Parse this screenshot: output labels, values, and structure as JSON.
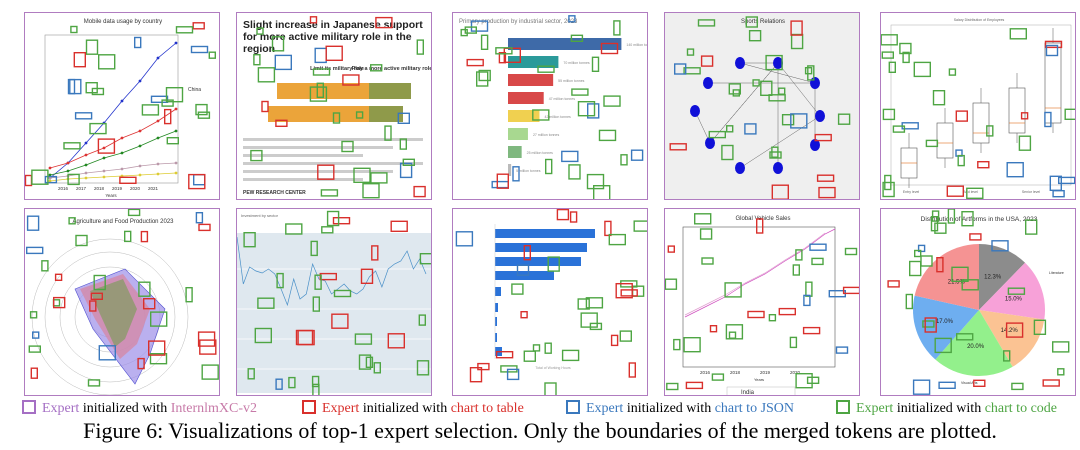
{
  "colors": {
    "internlm": "#a56fc4",
    "table": "#d9302c",
    "json": "#3a78bd",
    "code": "#4ea543",
    "border": "#b07cc0"
  },
  "panels": [
    {
      "title": "Mobile data usage by country",
      "xlabel": "Years",
      "ticks": [
        "2016",
        "2017",
        "2018",
        "2019",
        "2020",
        "2021"
      ],
      "legend": [
        "China"
      ]
    },
    {
      "title": "Slight increase in Japanese support for more active military role in the region",
      "col1": "Limit its military role",
      "col2": "Play a more active military role",
      "source": "PEW RESEARCH CENTER"
    },
    {
      "title": "Primary production by industrial sector, 2023",
      "bar_labels": [
        "140 million tonnes",
        "70 million tonnes",
        "55 million tonnes",
        "47 million tonnes",
        "42 million tonnes",
        "27 million tonnes",
        "25 million tonnes",
        "5 million tonnes"
      ]
    },
    {
      "title": "Sports Relations"
    },
    {
      "title": "Salary Distribution of Employees",
      "xlabels": [
        "Entry level",
        "Mid level",
        "Senior level"
      ]
    },
    {
      "title": "Agriculture and Food Production 2023"
    },
    {
      "title": "Investment by sector"
    },
    {
      "xlabel": "Total of Working Hours"
    },
    {
      "title": "Global Vehicle Sales",
      "xlabel": "Years",
      "ticks": [
        "2016",
        "2018",
        "2019",
        "2020"
      ],
      "legend": [
        "India"
      ]
    },
    {
      "title": "Distribution of Artforms in the USA, 2023",
      "labels": [
        "Literature",
        "Visual Arts"
      ]
    }
  ],
  "chart_data": {
    "type": "pie",
    "title": "Distribution of Artforms in the USA, 2023",
    "values": [
      12.3,
      15.0,
      14.2,
      20.0,
      17.0,
      21.5
    ],
    "value_labels": [
      "12.3%",
      "15.0%",
      "14.2%",
      "20.0%",
      "17.0%",
      "21.5%"
    ],
    "colors": [
      "#8c8c8c",
      "#f7a1d8",
      "#fbc393",
      "#93f08c",
      "#6eaef0",
      "#f59393"
    ]
  },
  "legend": [
    {
      "name": "Expert",
      "text": " initialized with ",
      "target": "InternlmXC-v2",
      "color": "#a56fc4"
    },
    {
      "name": "Expert",
      "text": " initialized with ",
      "target": "chart to table",
      "color": "#d9302c"
    },
    {
      "name": "Expert",
      "text": " initialized with ",
      "target": "chart to JSON",
      "color": "#3a78bd"
    },
    {
      "name": "Expert",
      "text": " initialized with ",
      "target": "chart to code",
      "color": "#4ea543"
    }
  ],
  "caption": "Figure 6: Visualizations of top-1 expert selection. Only the boundaries of the merged tokens are plotted."
}
